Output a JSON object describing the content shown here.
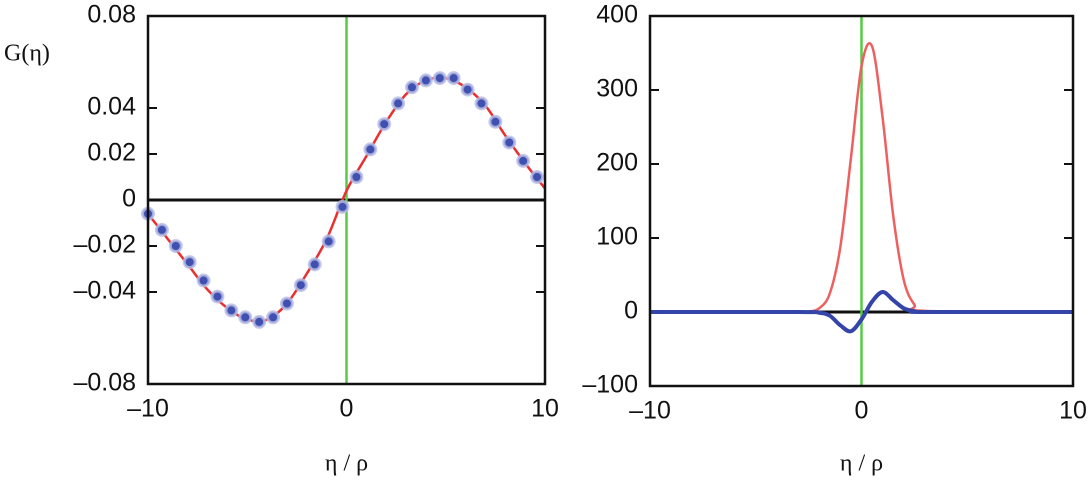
{
  "chart_data": [
    {
      "type": "line",
      "y_label": "G(η)",
      "x_label": "η / ρ",
      "xlim": [
        -10,
        10
      ],
      "xticks": [
        {
          "value": -10,
          "label": "–10"
        },
        0,
        10
      ],
      "ylim": [
        -0.08,
        0.08
      ],
      "yticks": [
        0.08,
        0.04,
        0.02,
        0,
        {
          "value": -0.02,
          "label": "–0.02"
        },
        {
          "value": -0.04,
          "label": "–0.04"
        },
        {
          "value": -0.08,
          "label": "–0.08"
        }
      ],
      "reference_lines": [
        {
          "axis": "y",
          "value": 0,
          "color": "#111111"
        },
        {
          "axis": "x",
          "value": 0,
          "color": "#55cc44"
        }
      ],
      "series": [
        {
          "color": "#e83030",
          "marker": "none",
          "x": [
            -10,
            -9,
            -8,
            -7,
            -6,
            -5,
            -4,
            -3,
            -2,
            -1,
            0,
            1,
            2,
            3,
            4,
            5,
            6,
            7,
            8,
            9,
            10
          ],
          "values": [
            -0.006,
            -0.017,
            -0.028,
            -0.039,
            -0.047,
            -0.052,
            -0.052,
            -0.045,
            -0.032,
            -0.017,
            0.004,
            0.019,
            0.034,
            0.046,
            0.052,
            0.053,
            0.049,
            0.041,
            0.028,
            0.016,
            0.005
          ]
        },
        {
          "color": "#4050b0",
          "marker": "circle",
          "x": [
            -10,
            -9.3,
            -8.6,
            -7.9,
            -7.2,
            -6.5,
            -5.8,
            -5.1,
            -4.4,
            -3.7,
            -3,
            -2.3,
            -1.6,
            -0.9,
            -0.2,
            0.5,
            1.2,
            1.9,
            2.6,
            3.3,
            4,
            4.7,
            5.4,
            6.1,
            6.8,
            7.5,
            8.2,
            8.9,
            9.6
          ],
          "values": [
            -0.006,
            -0.013,
            -0.02,
            -0.027,
            -0.035,
            -0.042,
            -0.048,
            -0.051,
            -0.053,
            -0.051,
            -0.045,
            -0.037,
            -0.028,
            -0.018,
            -0.003,
            0.01,
            0.022,
            0.033,
            0.042,
            0.049,
            0.052,
            0.053,
            0.053,
            0.048,
            0.042,
            0.034,
            0.025,
            0.017,
            0.01
          ]
        }
      ]
    },
    {
      "type": "line",
      "x_label": "η / ρ",
      "xlim": [
        -10,
        10
      ],
      "xticks": [
        {
          "value": -10,
          "label": "–10"
        },
        0,
        10
      ],
      "ylim": [
        -100,
        400
      ],
      "yticks": [
        400,
        300,
        200,
        100,
        0,
        {
          "value": -100,
          "label": "–100"
        }
      ],
      "reference_lines": [
        {
          "axis": "y",
          "value": 0,
          "color": "#111111"
        },
        {
          "axis": "x",
          "value": 0,
          "color": "#55cc44"
        }
      ],
      "series": [
        {
          "color": "#ee6060",
          "marker": "none",
          "x": [
            -10,
            -3,
            -2.5,
            -2,
            -1.5,
            -1,
            -0.5,
            0,
            0.5,
            1,
            1.5,
            2,
            2.5,
            3,
            10
          ],
          "values": [
            0,
            0,
            0.6,
            5,
            25,
            88,
            208,
            332,
            359,
            262,
            130,
            43,
            10,
            1.5,
            0
          ]
        },
        {
          "color": "#3444a8",
          "marker": "none",
          "x": [
            -10,
            -3,
            -2,
            -1.5,
            -1,
            -0.5,
            0,
            0.5,
            1,
            1.5,
            2,
            2.5,
            3,
            10
          ],
          "values": [
            0,
            0,
            -1,
            -5,
            -18,
            -26,
            -10,
            14,
            27,
            16,
            5,
            1,
            0,
            0
          ]
        }
      ]
    }
  ]
}
